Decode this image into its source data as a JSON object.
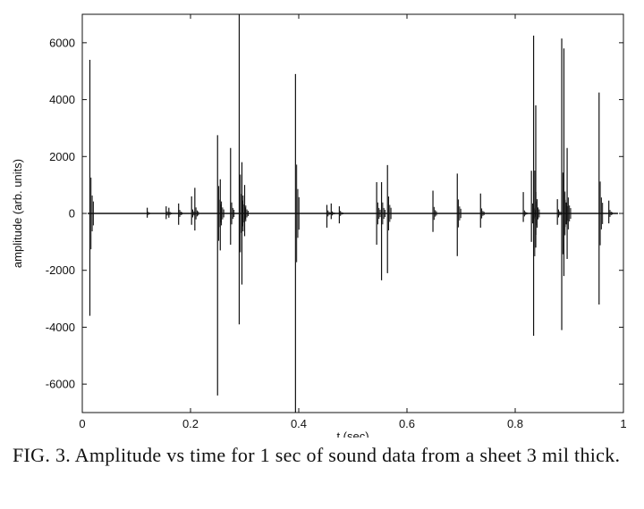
{
  "caption": {
    "text": "FIG. 3.  Amplitude vs time for 1 sec of sound data from a sheet 3 mil thick."
  },
  "chart_data": {
    "type": "line",
    "title": "",
    "xlabel": "t (sec)",
    "ylabel": "amplitude (arb. units)",
    "xlim": [
      0,
      1
    ],
    "ylim": [
      -7000,
      7000
    ],
    "grid": false,
    "xticks": [
      0,
      0.2,
      0.4,
      0.6,
      0.8,
      1
    ],
    "xtick_labels": [
      "0",
      "0.2",
      "0.4",
      "0.6",
      "0.8",
      "1"
    ],
    "yticks": [
      -6000,
      -4000,
      -2000,
      0,
      2000,
      4000,
      6000
    ],
    "ytick_labels": [
      "-6000",
      "-4000",
      "-2000",
      "0",
      "2000",
      "4000",
      "6000"
    ],
    "series": [
      {
        "color": "#111111",
        "events": [
          {
            "t": 0.014,
            "pos": 5400,
            "neg": -3600
          },
          {
            "t": 0.12,
            "pos": 200,
            "neg": -150
          },
          {
            "t": 0.155,
            "pos": 250,
            "neg": -200
          },
          {
            "t": 0.16,
            "pos": 200,
            "neg": -150
          },
          {
            "t": 0.178,
            "pos": 350,
            "neg": -400
          },
          {
            "t": 0.202,
            "pos": 600,
            "neg": -400
          },
          {
            "t": 0.208,
            "pos": 900,
            "neg": -600
          },
          {
            "t": 0.25,
            "pos": 2750,
            "neg": -6400
          },
          {
            "t": 0.255,
            "pos": 1200,
            "neg": -1300
          },
          {
            "t": 0.274,
            "pos": 2300,
            "neg": -1100
          },
          {
            "t": 0.29,
            "pos": 7000,
            "neg": -3900
          },
          {
            "t": 0.295,
            "pos": 1800,
            "neg": -2500
          },
          {
            "t": 0.3,
            "pos": 1000,
            "neg": -800
          },
          {
            "t": 0.394,
            "pos": 4900,
            "neg": -7000
          },
          {
            "t": 0.452,
            "pos": 300,
            "neg": -500
          },
          {
            "t": 0.46,
            "pos": 350,
            "neg": -200
          },
          {
            "t": 0.475,
            "pos": 250,
            "neg": -350
          },
          {
            "t": 0.544,
            "pos": 1100,
            "neg": -1100
          },
          {
            "t": 0.553,
            "pos": 1100,
            "neg": -2350
          },
          {
            "t": 0.564,
            "pos": 1700,
            "neg": -2100
          },
          {
            "t": 0.648,
            "pos": 800,
            "neg": -650
          },
          {
            "t": 0.693,
            "pos": 1400,
            "neg": -1500
          },
          {
            "t": 0.736,
            "pos": 700,
            "neg": -500
          },
          {
            "t": 0.815,
            "pos": 750,
            "neg": -300
          },
          {
            "t": 0.83,
            "pos": 1500,
            "neg": -1000
          },
          {
            "t": 0.834,
            "pos": 6250,
            "neg": -4300
          },
          {
            "t": 0.838,
            "pos": 3800,
            "neg": -1200
          },
          {
            "t": 0.878,
            "pos": 500,
            "neg": -400
          },
          {
            "t": 0.886,
            "pos": 6150,
            "neg": -4100
          },
          {
            "t": 0.89,
            "pos": 5800,
            "neg": -2200
          },
          {
            "t": 0.896,
            "pos": 2300,
            "neg": -1600
          },
          {
            "t": 0.955,
            "pos": 4250,
            "neg": -3200
          },
          {
            "t": 0.973,
            "pos": 450,
            "neg": -350
          }
        ]
      }
    ]
  }
}
